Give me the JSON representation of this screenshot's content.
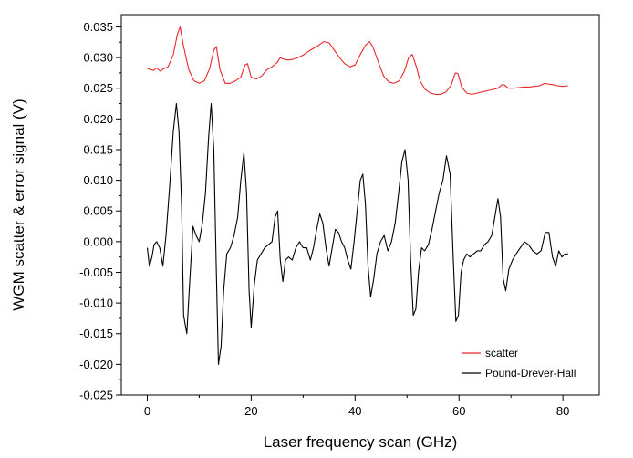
{
  "chart_data": {
    "type": "line",
    "title": "",
    "xlabel": "Laser frequency scan (GHz)",
    "ylabel": "WGM scatter & error signal (V)",
    "xlim": [
      -5,
      87
    ],
    "ylim": [
      -0.025,
      0.037
    ],
    "x_ticks": [
      "0",
      "20",
      "40",
      "60",
      "80"
    ],
    "y_ticks": [
      "-0.025",
      "-0.020",
      "-0.015",
      "-0.010",
      "-0.005",
      "0.000",
      "0.005",
      "0.010",
      "0.015",
      "0.020",
      "0.025",
      "0.030",
      "0.035"
    ],
    "x_tick_values": [
      0,
      20,
      40,
      60,
      80
    ],
    "y_tick_values": [
      -0.025,
      -0.02,
      -0.015,
      -0.01,
      -0.005,
      0.0,
      0.005,
      0.01,
      0.015,
      0.02,
      0.025,
      0.03,
      0.035
    ],
    "grid": false,
    "legend": "bottom-right",
    "series": [
      {
        "name": "scatter",
        "color": "#e8282b",
        "x": [
          0,
          0.5,
          1.2,
          1.8,
          2.5,
          3.2,
          4.0,
          5.0,
          5.8,
          6.3,
          7.0,
          8.0,
          9.0,
          10.0,
          11.0,
          12.0,
          12.8,
          13.3,
          14.0,
          15.0,
          16.0,
          17.0,
          18.0,
          18.8,
          19.3,
          20.0,
          21.0,
          22.0,
          23.0,
          24.0,
          25.0,
          25.6,
          26.0,
          27.0,
          28.0,
          29.0,
          30.0,
          31.0,
          32.0,
          33.0,
          34.0,
          35.0,
          36.0,
          37.0,
          38.0,
          39.0,
          40.0,
          41.0,
          42.0,
          42.8,
          43.5,
          44.5,
          45.5,
          46.5,
          47.5,
          48.5,
          49.5,
          50.3,
          51.0,
          51.8,
          52.5,
          53.5,
          54.5,
          55.5,
          56.5,
          57.5,
          58.5,
          59.3,
          59.8,
          60.5,
          61.5,
          62.5,
          63.5,
          64.5,
          65.5,
          66.5,
          67.5,
          68.3,
          68.8,
          69.5,
          70.5,
          71.5,
          72.5,
          73.5,
          74.5,
          75.5,
          76.5,
          77.0,
          78.0,
          79.0,
          80.0,
          81.0
        ],
        "values": [
          0.0282,
          0.0281,
          0.0279,
          0.0283,
          0.0278,
          0.0282,
          0.0285,
          0.0305,
          0.0338,
          0.035,
          0.0318,
          0.028,
          0.0262,
          0.0258,
          0.0262,
          0.0282,
          0.0312,
          0.0318,
          0.028,
          0.0258,
          0.0258,
          0.0262,
          0.0268,
          0.0288,
          0.029,
          0.0268,
          0.0265,
          0.027,
          0.028,
          0.0285,
          0.0292,
          0.03,
          0.0298,
          0.0296,
          0.0297,
          0.03,
          0.0304,
          0.031,
          0.0315,
          0.032,
          0.0326,
          0.0324,
          0.0312,
          0.03,
          0.029,
          0.0285,
          0.0288,
          0.0305,
          0.032,
          0.0326,
          0.0316,
          0.0292,
          0.027,
          0.026,
          0.0258,
          0.0262,
          0.0278,
          0.03,
          0.0305,
          0.0285,
          0.0262,
          0.0248,
          0.0242,
          0.024,
          0.024,
          0.0244,
          0.0255,
          0.0275,
          0.0274,
          0.0252,
          0.0242,
          0.024,
          0.0242,
          0.0244,
          0.0246,
          0.0248,
          0.025,
          0.0256,
          0.0255,
          0.025,
          0.025,
          0.0251,
          0.0252,
          0.0252,
          0.0253,
          0.0254,
          0.0258,
          0.0257,
          0.0256,
          0.0254,
          0.0253,
          0.0254
        ]
      },
      {
        "name": "Pound-Drever-Hall",
        "color": "#000000",
        "x": [
          0,
          0.4,
          0.9,
          1.3,
          1.8,
          2.4,
          3.0,
          3.6,
          4.3,
          5.0,
          5.6,
          6.1,
          6.6,
          7.0,
          7.6,
          8.2,
          8.8,
          9.4,
          10.0,
          10.6,
          11.2,
          11.8,
          12.3,
          12.8,
          13.3,
          13.7,
          14.2,
          14.7,
          15.3,
          16.0,
          16.7,
          17.4,
          18.0,
          18.6,
          19.1,
          19.6,
          20.0,
          20.6,
          21.2,
          21.9,
          22.6,
          23.3,
          24.0,
          24.6,
          25.1,
          25.6,
          26.1,
          26.6,
          27.2,
          27.9,
          28.6,
          29.3,
          30.0,
          30.7,
          31.4,
          32.0,
          32.6,
          33.2,
          33.8,
          34.4,
          35.0,
          35.6,
          36.2,
          36.8,
          37.4,
          38.0,
          38.6,
          39.2,
          39.8,
          40.4,
          41.0,
          41.5,
          42.0,
          42.5,
          43.0,
          43.6,
          44.2,
          44.9,
          45.6,
          46.3,
          47.0,
          47.7,
          48.4,
          49.0,
          49.6,
          50.2,
          50.7,
          51.2,
          51.7,
          52.2,
          52.8,
          53.4,
          54.1,
          54.8,
          55.5,
          56.2,
          56.9,
          57.6,
          58.3,
          58.9,
          59.4,
          59.9,
          60.4,
          60.9,
          61.5,
          62.1,
          62.8,
          63.5,
          64.2,
          64.9,
          65.6,
          66.3,
          66.9,
          67.5,
          68.0,
          68.5,
          69.0,
          69.6,
          70.3,
          71.0,
          71.8,
          72.6,
          73.4,
          74.2,
          75.0,
          75.8,
          76.6,
          77.3,
          78.0,
          78.6,
          79.2,
          79.8,
          80.4,
          81.0
        ],
        "values": [
          -0.001,
          -0.004,
          -0.0025,
          -0.0005,
          0.0,
          -0.001,
          -0.004,
          0.001,
          0.009,
          0.018,
          0.0225,
          0.018,
          0.006,
          -0.012,
          -0.015,
          -0.006,
          0.0025,
          0.001,
          0.0,
          0.003,
          0.008,
          0.017,
          0.0225,
          0.015,
          -0.005,
          -0.02,
          -0.017,
          -0.008,
          -0.002,
          -0.001,
          0.001,
          0.004,
          0.01,
          0.0145,
          0.008,
          -0.008,
          -0.014,
          -0.007,
          -0.003,
          -0.002,
          -0.001,
          -0.0005,
          0.0,
          0.004,
          0.005,
          -0.003,
          -0.0065,
          -0.003,
          -0.0025,
          -0.003,
          -0.001,
          0.0,
          -0.001,
          -0.001,
          -0.003,
          -0.001,
          0.002,
          0.0045,
          0.003,
          -0.001,
          -0.004,
          -0.001,
          0.002,
          0.0015,
          0.0,
          -0.001,
          -0.003,
          -0.0045,
          0.0,
          0.005,
          0.01,
          0.011,
          0.006,
          -0.004,
          -0.009,
          -0.006,
          -0.002,
          0.0,
          0.001,
          -0.0015,
          0.0,
          0.003,
          0.008,
          0.013,
          0.015,
          0.01,
          -0.003,
          -0.012,
          -0.011,
          -0.005,
          -0.001,
          -0.0015,
          -0.0005,
          0.002,
          0.005,
          0.008,
          0.01,
          0.014,
          0.011,
          -0.003,
          -0.013,
          -0.012,
          -0.005,
          -0.003,
          -0.002,
          -0.0025,
          -0.002,
          -0.0015,
          -0.0015,
          -0.0005,
          0.0,
          0.001,
          0.004,
          0.007,
          0.004,
          -0.006,
          -0.008,
          -0.0045,
          -0.003,
          -0.002,
          -0.001,
          0.0,
          -0.0005,
          -0.0015,
          -0.002,
          -0.0015,
          0.0015,
          0.0015,
          -0.0025,
          -0.004,
          -0.0015,
          -0.0025,
          -0.002,
          -0.002
        ]
      }
    ]
  }
}
